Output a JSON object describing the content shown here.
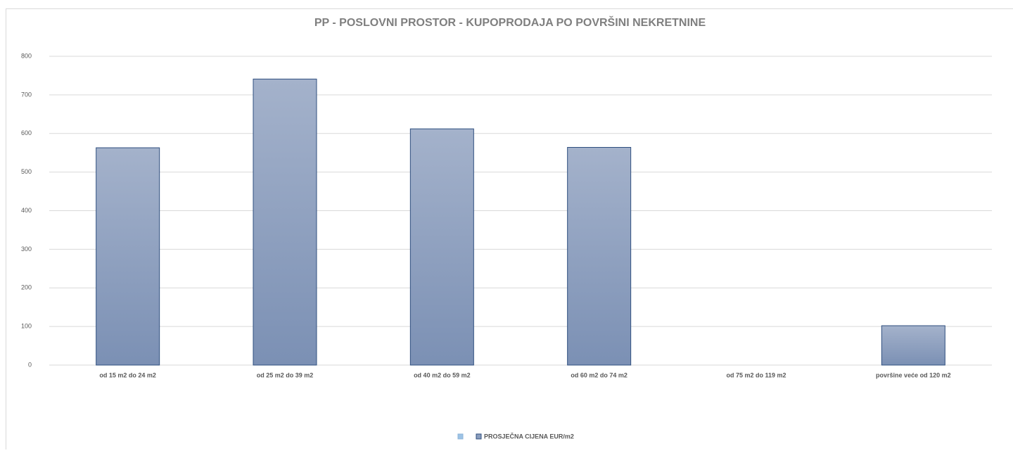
{
  "chart_data": {
    "type": "bar",
    "title": "PP - POSLOVNI PROSTOR - KUPOPRODAJA PO POVRŠINI NEKRETNINE",
    "categories": [
      "od 15 m2 do 24 m2",
      "od 25 m2 do 39 m2",
      "od 40 m2 do 59 m2",
      "od 60 m2 do 74 m2",
      "od 75 m2 do 119 m2",
      "površine veće od 120 m2"
    ],
    "series": [
      {
        "name": "PROSJEČNA CIJENA EUR/m2",
        "color": "#8a9dbd",
        "values": [
          563,
          741,
          612,
          564,
          0,
          102
        ]
      }
    ],
    "ylim": [
      0,
      800
    ],
    "yticks": [
      0,
      100,
      200,
      300,
      400,
      500,
      600,
      700,
      800
    ],
    "grid": true,
    "legend": "bottom"
  }
}
